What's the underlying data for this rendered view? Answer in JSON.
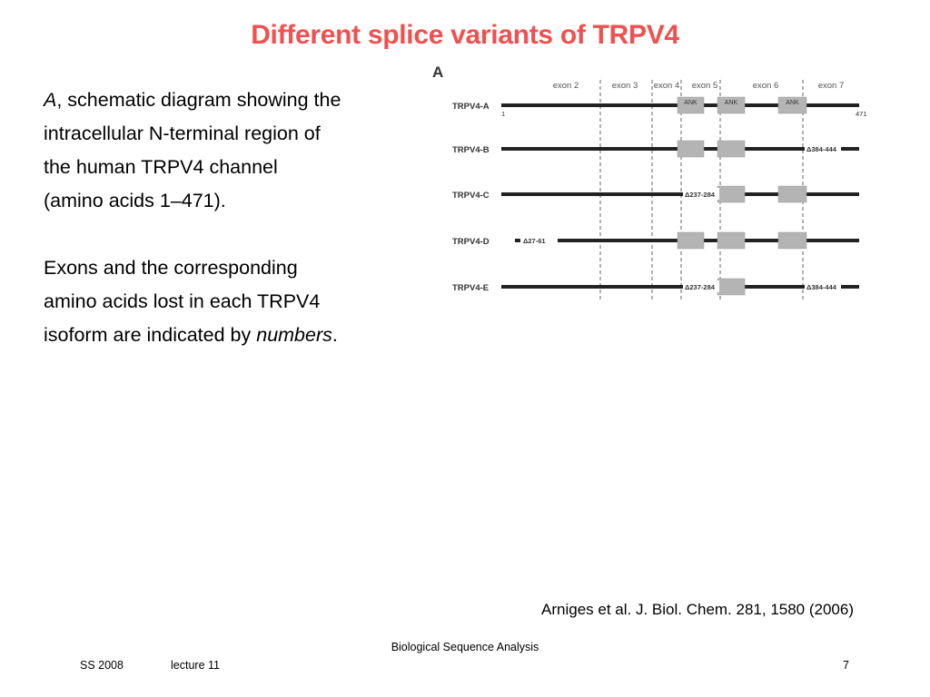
{
  "slide": {
    "title": "Different splice variants of TRPV4",
    "description": {
      "p1_italic": "A",
      "p1_rest": ", schematic diagram showing the",
      "p2": "intracellular N-terminal region of",
      "p3": "the human TRPV4 channel",
      "p4": "(amino acids 1–471).",
      "p5": "Exons and the corresponding",
      "p6": "amino acids lost in each TRPV4",
      "p7_pre": "isoform are indicated by ",
      "p7_italic": "numbers",
      "p7_post": "."
    },
    "citation": "Arniges et al. J. Biol. Chem. 281, 1580 (2006)"
  },
  "figure": {
    "panel_label": "A",
    "exon_labels": [
      "exon 2",
      "exon 3",
      "exon 4",
      "exon 5",
      "exon 6",
      "exon 7"
    ],
    "ank_label": "ANK",
    "isoforms": [
      {
        "name": "TRPV4-A",
        "start_label": "1",
        "end_label": "471",
        "deletions": []
      },
      {
        "name": "TRPV4-B",
        "deletions": [
          "Δ384-444"
        ]
      },
      {
        "name": "TRPV4-C",
        "deletions": [
          "Δ237-284"
        ]
      },
      {
        "name": "TRPV4-D",
        "deletions": [
          "Δ27-61"
        ]
      },
      {
        "name": "TRPV4-E",
        "deletions": [
          "Δ237-284",
          "Δ384-444"
        ]
      }
    ],
    "colors": {
      "bar": "#222222",
      "ank_box": "#b4b4b4",
      "divider": "#666666"
    }
  },
  "footer": {
    "course": "Biological Sequence Analysis",
    "semester": "SS 2008",
    "lecture": "lecture 11",
    "page": "7"
  }
}
